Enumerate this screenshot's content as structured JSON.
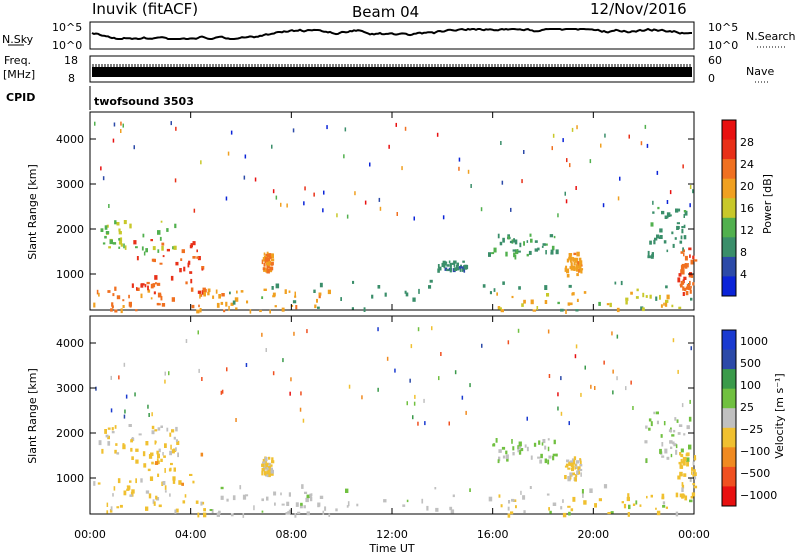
{
  "header": {
    "station": "Inuvik (fitACF)",
    "beam": "Beam 04",
    "date": "12/Nov/2016"
  },
  "nsky_panel": {
    "label": "N.Sky",
    "ticks_left": [
      "10^5",
      "10^0"
    ],
    "right_label": "N.Search",
    "ticks_right": [
      "10^5",
      "10^0"
    ]
  },
  "freq_panel": {
    "label_top": "Freq.",
    "label_bottom": "[MHz]",
    "ticks_left": [
      "18",
      "8"
    ],
    "right_label": "Nave",
    "ticks_right": [
      "60",
      "0"
    ]
  },
  "cpid_panel": {
    "label": "CPID",
    "program": "twofsound 3503"
  },
  "xaxis": {
    "label": "Time UT",
    "ticks": [
      "00:00",
      "04:00",
      "08:00",
      "12:00",
      "16:00",
      "20:00",
      "00:00"
    ]
  },
  "colors": {
    "power": [
      "#0b24d8",
      "#2c4aa8",
      "#3a8e6a",
      "#51b04e",
      "#c8c82a",
      "#f0a020",
      "#f07020",
      "#e83018",
      "#e81010"
    ],
    "velocity": [
      "#e81010",
      "#f05020",
      "#f08a20",
      "#f0c030",
      "#c0c0c0",
      "#70c040",
      "#3a9a4a",
      "#2c4aa8",
      "#1a3ad0"
    ]
  },
  "chart_data": [
    {
      "type": "heatmap",
      "xlabel": "Time UT",
      "ylabel": "Slant Range [km]",
      "xlim": [
        0,
        24
      ],
      "ylim": [
        200,
        4600
      ],
      "yticks": [
        "1000",
        "2000",
        "3000",
        "4000"
      ],
      "colorbar_label": "Power [dB]",
      "colorbar_ticks": [
        "4",
        "8",
        "12",
        "16",
        "20",
        "24",
        "28"
      ],
      "colorbar_range": [
        0,
        32
      ],
      "regions": [
        {
          "t0": 0.1,
          "t1": 4.6,
          "r0": 200,
          "r1": 1000,
          "v": 22
        },
        {
          "t0": 1.5,
          "t1": 4.5,
          "r0": 600,
          "r1": 1800,
          "v": 26
        },
        {
          "t0": 0.3,
          "t1": 3.5,
          "r0": 1500,
          "r1": 2200,
          "v": 14
        },
        {
          "t0": 4.3,
          "t1": 9.5,
          "r0": 200,
          "r1": 700,
          "v": 20
        },
        {
          "t0": 4.5,
          "t1": 24,
          "r0": 200,
          "r1": 900,
          "v": 9
        },
        {
          "t0": 6.8,
          "t1": 7.2,
          "r0": 1100,
          "r1": 1500,
          "v": 22
        },
        {
          "t0": 15.8,
          "t1": 18.5,
          "r0": 1400,
          "r1": 1900,
          "v": 10
        },
        {
          "t0": 18.8,
          "t1": 19.5,
          "r0": 1000,
          "r1": 1500,
          "v": 20
        },
        {
          "t0": 13.8,
          "t1": 15.0,
          "r0": 1100,
          "r1": 1300,
          "v": 8
        },
        {
          "t0": 16.0,
          "t1": 23.5,
          "r0": 200,
          "r1": 700,
          "v": 18
        },
        {
          "t0": 22.0,
          "t1": 23.8,
          "r0": 1400,
          "r1": 2500,
          "v": 9
        },
        {
          "t0": 23.3,
          "t1": 24,
          "r0": 600,
          "r1": 1600,
          "v": 24
        }
      ]
    },
    {
      "type": "heatmap",
      "xlabel": "Time UT",
      "ylabel": "Slant Range [km]",
      "xlim": [
        0,
        24
      ],
      "ylim": [
        200,
        4600
      ],
      "yticks": [
        "1000",
        "2000",
        "3000",
        "4000"
      ],
      "colorbar_label": "Velocity [m s⁻¹]",
      "colorbar_ticks": [
        "1000",
        "500",
        "100",
        "25",
        "−25",
        "−100",
        "−500",
        "−1000"
      ],
      "colorbar_range": [
        -1200,
        1200
      ],
      "regions": [
        {
          "t0": 0.1,
          "t1": 4.6,
          "r0": 200,
          "r1": 1000,
          "v": -200
        },
        {
          "t0": 1.5,
          "t1": 4.5,
          "r0": 600,
          "r1": 1900,
          "v": -300
        },
        {
          "t0": 0.3,
          "t1": 3.5,
          "r0": 1500,
          "r1": 2200,
          "v": -150
        },
        {
          "t0": 4.3,
          "t1": 9.5,
          "r0": 200,
          "r1": 700,
          "v": 0
        },
        {
          "t0": 4.5,
          "t1": 24,
          "r0": 200,
          "r1": 900,
          "v": 80
        },
        {
          "t0": 6.8,
          "t1": 7.2,
          "r0": 1100,
          "r1": 1500,
          "v": -150
        },
        {
          "t0": 15.8,
          "t1": 18.5,
          "r0": 1400,
          "r1": 1900,
          "v": 150
        },
        {
          "t0": 18.8,
          "t1": 19.5,
          "r0": 1000,
          "r1": 1500,
          "v": -150
        },
        {
          "t0": 16.0,
          "t1": 23.5,
          "r0": 200,
          "r1": 700,
          "v": -200
        },
        {
          "t0": 22.0,
          "t1": 23.8,
          "r0": 1400,
          "r1": 2500,
          "v": 100
        },
        {
          "t0": 23.3,
          "t1": 24,
          "r0": 600,
          "r1": 1600,
          "v": -250
        }
      ]
    }
  ]
}
